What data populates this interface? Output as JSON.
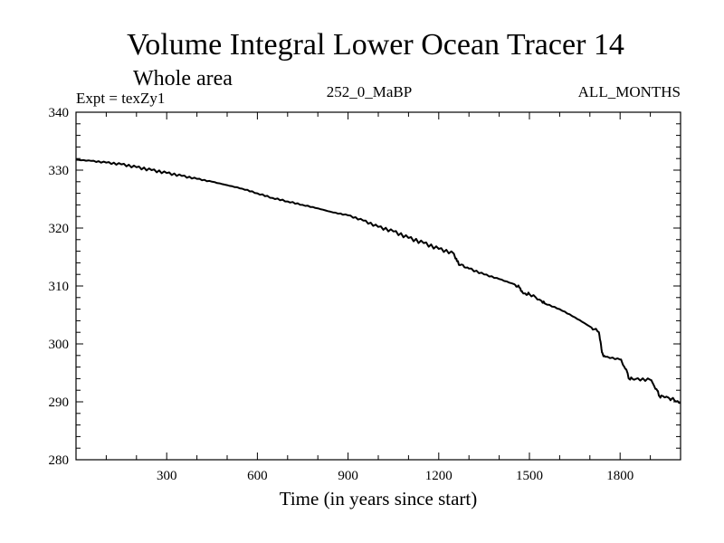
{
  "chart_data": {
    "type": "line",
    "title": "Volume Integral Lower Ocean Tracer 14",
    "subtitle": "Whole area",
    "expt_label": "Expt = texZy1",
    "center_label": "252_0_MaBP",
    "right_label": "ALL_MONTHS",
    "xlabel": "Time (in years since start)",
    "ylabel": "",
    "xlim": [
      0,
      2000
    ],
    "ylim": [
      280,
      340
    ],
    "x_ticks": [
      300,
      600,
      900,
      1200,
      1500,
      1800
    ],
    "y_ticks": [
      280,
      290,
      300,
      310,
      320,
      330,
      340
    ],
    "grid": false,
    "series": [
      {
        "name": "Tracer 14",
        "color": "#000000",
        "x": [
          0,
          50,
          100,
          150,
          200,
          250,
          300,
          350,
          400,
          450,
          500,
          550,
          600,
          650,
          700,
          750,
          800,
          850,
          900,
          950,
          1000,
          1050,
          1100,
          1150,
          1200,
          1250,
          1260,
          1270,
          1300,
          1350,
          1400,
          1450,
          1470,
          1480,
          1500,
          1540,
          1550,
          1600,
          1650,
          1700,
          1730,
          1740,
          1750,
          1800,
          1820,
          1830,
          1850,
          1900,
          1920,
          1930,
          1950,
          1970,
          2000
        ],
        "values": [
          331.8,
          331.6,
          331.3,
          331.0,
          330.5,
          330.0,
          329.5,
          329.0,
          328.5,
          328.0,
          327.4,
          326.8,
          326.0,
          325.2,
          324.6,
          324.0,
          323.4,
          322.7,
          322.2,
          321.3,
          320.2,
          319.4,
          318.3,
          317.4,
          316.4,
          315.6,
          314.3,
          313.6,
          313.0,
          312.0,
          311.2,
          310.3,
          309.6,
          308.7,
          308.6,
          307.4,
          307.0,
          306.0,
          304.6,
          303.0,
          302.0,
          298.5,
          297.8,
          297.3,
          295.6,
          294.0,
          293.9,
          293.8,
          292.2,
          291.0,
          290.8,
          290.5,
          289.8
        ]
      }
    ]
  }
}
